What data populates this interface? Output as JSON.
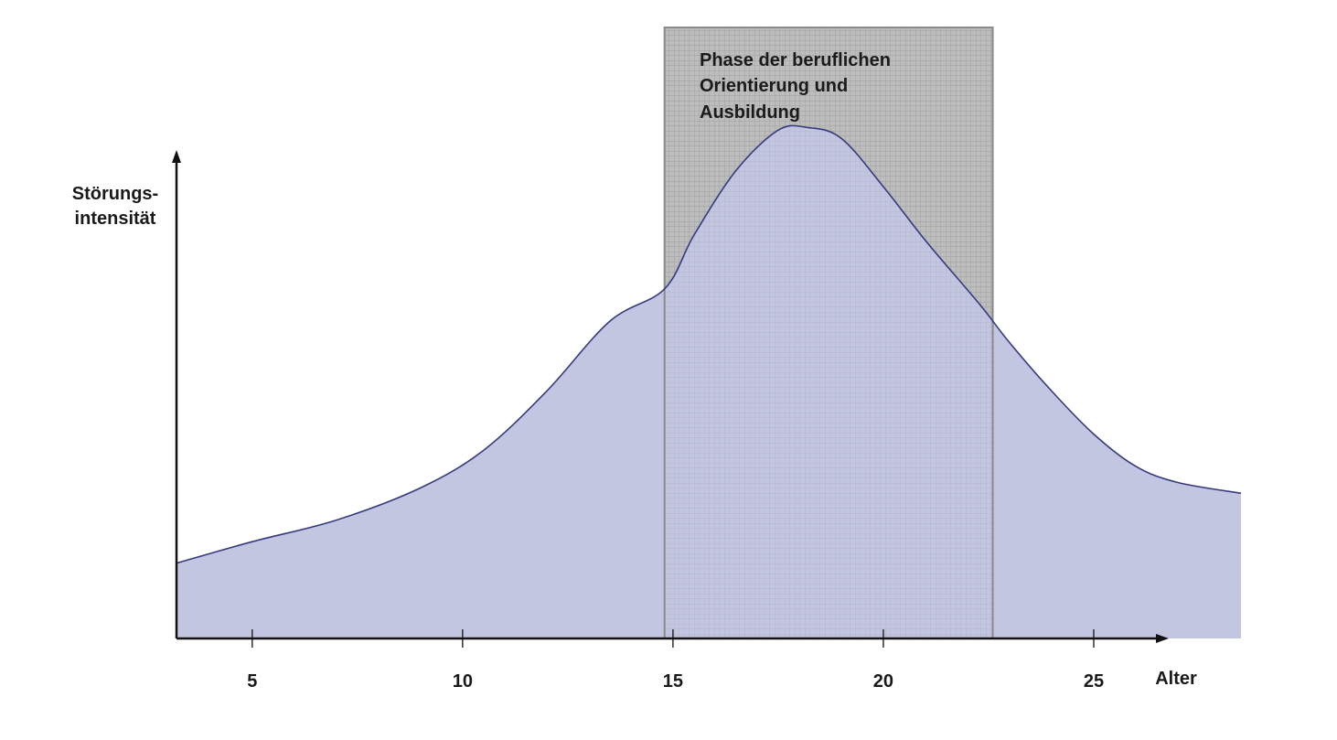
{
  "chart_data": {
    "type": "area",
    "title": "",
    "xlabel": "Alter",
    "ylabel_lines": [
      "Störungs-",
      "intensität"
    ],
    "xlim": [
      3.2,
      28.5
    ],
    "ylim": [
      0,
      100
    ],
    "xticks": [
      5,
      10,
      15,
      20,
      25
    ],
    "xtick_labels": [
      "5",
      "10",
      "15",
      "20",
      "25"
    ],
    "grid": false,
    "legend": "none",
    "series": [
      {
        "x": [
          3.2,
          5,
          7,
          9,
          10.5,
          12,
          13.5,
          14.8,
          15.5,
          16.5,
          17.5,
          18.2,
          19,
          20,
          21,
          22.3,
          23,
          24,
          25,
          26,
          27,
          28.5
        ],
        "y": [
          14,
          18,
          22,
          28,
          35,
          46,
          59,
          65,
          75,
          87,
          94.5,
          95,
          93,
          84,
          74,
          62,
          55,
          46,
          38,
          32,
          29,
          27
        ]
      }
    ],
    "highlight_band": {
      "x_range": [
        14.8,
        22.6
      ],
      "label_lines": [
        "Phase der beruflichen",
        "Orientierung und",
        "Ausbildung"
      ]
    },
    "colors": {
      "area_fill": "#c3c6e1",
      "curve_line": "#353a7e",
      "band_fill": "#bdbdbd",
      "band_grid": "#9a9a9a",
      "axis": "#111111"
    }
  }
}
